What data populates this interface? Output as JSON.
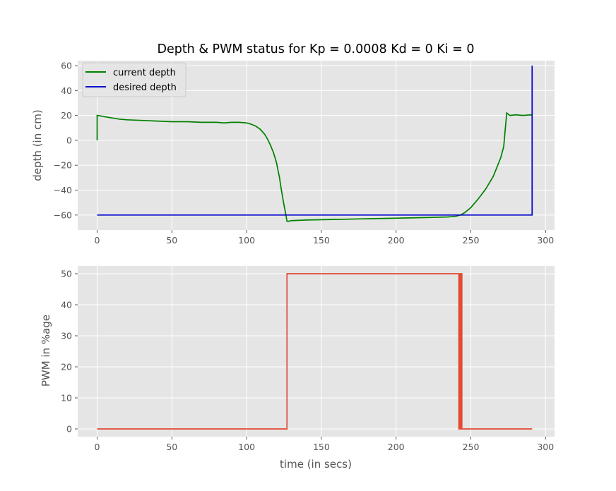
{
  "colors": {
    "background": "#E5E5E5",
    "grid": "#FFFFFF",
    "current_depth": "#008000",
    "desired_depth": "#0000CC",
    "pwm": "#E24A33"
  },
  "chart_data": [
    {
      "type": "line",
      "title": "Depth & PWM status for Kp = 0.0008 Kd = 0 Ki = 0",
      "xlabel": "",
      "ylabel": "depth (in cm)",
      "xlim": [
        -13,
        306
      ],
      "ylim": [
        -72,
        64
      ],
      "xticks": [
        0,
        50,
        100,
        150,
        200,
        250,
        300
      ],
      "xtick_labels": [
        "0",
        "50",
        "100",
        "150",
        "200",
        "250",
        "300"
      ],
      "yticks": [
        -60,
        -40,
        -20,
        0,
        20,
        40,
        60
      ],
      "ytick_labels": [
        "−60",
        "−40",
        "−20",
        "0",
        "20",
        "40",
        "60"
      ],
      "grid": true,
      "legend_position": "top-left",
      "series": [
        {
          "name": "current depth",
          "color": "#008000",
          "x": [
            0,
            0,
            0.5,
            5,
            10,
            15,
            20,
            30,
            40,
            50,
            60,
            70,
            80,
            85,
            90,
            95,
            100,
            103,
            106,
            109,
            112,
            114,
            116,
            118,
            120,
            121,
            122,
            123,
            124,
            125,
            126,
            127,
            128,
            130,
            140,
            160,
            180,
            200,
            220,
            235,
            240,
            243,
            246,
            250,
            255,
            260,
            265,
            270,
            272,
            274,
            276,
            280,
            285,
            290,
            291
          ],
          "y": [
            0,
            20,
            20,
            19,
            18,
            17,
            16.5,
            16,
            15.5,
            15,
            15,
            14.5,
            14.5,
            14,
            14.5,
            14.5,
            14,
            13,
            11.5,
            9,
            5,
            1,
            -4,
            -10,
            -18,
            -24,
            -30,
            -38,
            -45,
            -52,
            -58,
            -65,
            -65,
            -64.5,
            -64,
            -63.5,
            -63,
            -62.5,
            -62,
            -61.5,
            -61,
            -60,
            -58,
            -54,
            -47,
            -39,
            -29,
            -14,
            -5,
            22,
            20,
            20.5,
            20,
            20.5,
            20
          ]
        },
        {
          "name": "desired depth",
          "color": "#0000CC",
          "x": [
            0,
            291,
            291
          ],
          "y": [
            -60,
            -60,
            60
          ]
        }
      ]
    },
    {
      "type": "line",
      "title": "",
      "xlabel": "time (in secs)",
      "ylabel": "PWM in %age",
      "xlim": [
        -13,
        306
      ],
      "ylim": [
        -2.5,
        52.5
      ],
      "xticks": [
        0,
        50,
        100,
        150,
        200,
        250,
        300
      ],
      "xtick_labels": [
        "0",
        "50",
        "100",
        "150",
        "200",
        "250",
        "300"
      ],
      "yticks": [
        0,
        10,
        20,
        30,
        40,
        50
      ],
      "ytick_labels": [
        "0",
        "10",
        "20",
        "30",
        "40",
        "50"
      ],
      "grid": true,
      "series": [
        {
          "color": "#E24A33",
          "x": [
            0,
            127,
            127,
            242,
            242,
            242.5,
            242.5,
            243,
            243,
            243.5,
            243.5,
            244,
            244,
            244.5,
            244.5,
            291
          ],
          "y": [
            0,
            0,
            50,
            50,
            0,
            0,
            50,
            50,
            0,
            0,
            50,
            50,
            0,
            0,
            0,
            0
          ]
        }
      ]
    }
  ]
}
